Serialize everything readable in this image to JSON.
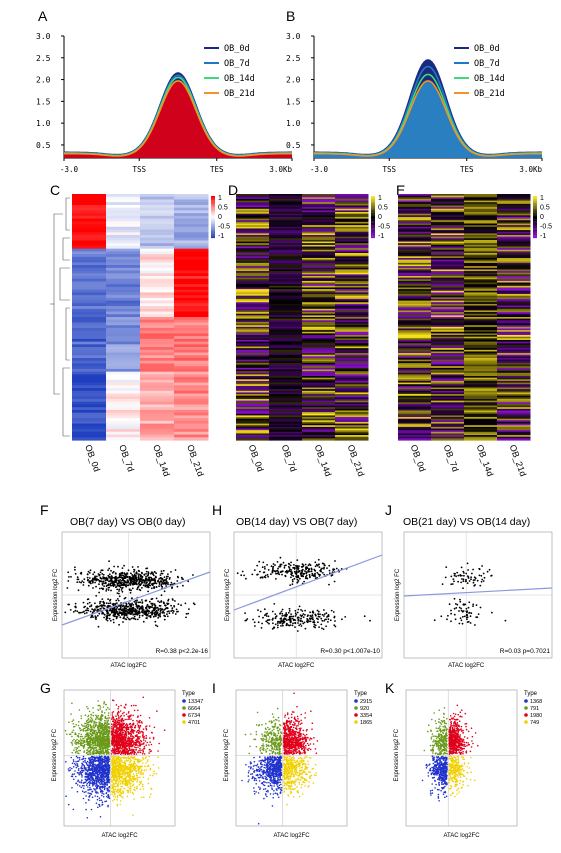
{
  "panels": {
    "A": "A",
    "B": "B",
    "C": "C",
    "D": "D",
    "E": "E",
    "F": "F",
    "G": "G",
    "H": "H",
    "I": "I",
    "J": "J",
    "K": "K"
  },
  "profile_x_ticks": [
    "-3.0",
    "TSS",
    "TES",
    "3.0Kb"
  ],
  "chart_data": [
    {
      "panel": "A",
      "type": "area",
      "x_ticks": [
        "-3.0",
        "TSS",
        "TES",
        "3.0Kb"
      ],
      "ylim": [
        0.2,
        3.0
      ],
      "y_ticks": [
        "0.5",
        "1.0",
        "1.5",
        "2.0",
        "2.5",
        "3.0"
      ],
      "legend_position": "top-right",
      "series": [
        {
          "name": "OB_0d",
          "color": "#1b2a7a",
          "peak": 2.15,
          "baseline": 0.33
        },
        {
          "name": "OB_7d",
          "color": "#1e78c8",
          "peak": 2.1,
          "baseline": 0.32
        },
        {
          "name": "OB_14d",
          "color": "#3fd97a",
          "peak": 2.05,
          "baseline": 0.31
        },
        {
          "name": "OB_21d",
          "color": "#f0932b",
          "peak": 1.97,
          "baseline": 0.3
        }
      ],
      "fill_color": "#d0021b"
    },
    {
      "panel": "B",
      "type": "area",
      "x_ticks": [
        "-3.0",
        "TSS",
        "TES",
        "3.0Kb"
      ],
      "ylim": [
        0.2,
        3.0
      ],
      "y_ticks": [
        "0.5",
        "1.0",
        "1.5",
        "2.0",
        "2.5",
        "3.0"
      ],
      "legend_position": "top-right",
      "series": [
        {
          "name": "OB_0d",
          "color": "#1b2a7a",
          "peak": 2.45,
          "baseline": 0.33
        },
        {
          "name": "OB_7d",
          "color": "#1e78c8",
          "peak": 2.3,
          "baseline": 0.32
        },
        {
          "name": "OB_14d",
          "color": "#3fd97a",
          "peak": 2.12,
          "baseline": 0.31
        },
        {
          "name": "OB_21d",
          "color": "#f0932b",
          "peak": 1.97,
          "baseline": 0.3
        }
      ],
      "fill_color": "#2a7fc0"
    },
    {
      "panel": "C",
      "type": "heatmap",
      "columns": [
        "OB_0d",
        "OB_7d",
        "OB_14d",
        "OB_21d"
      ],
      "legend_ticks": [
        "1",
        "0.5",
        "0",
        "-0.5",
        "-1"
      ],
      "colors": [
        "#ff0000",
        "#ffffff",
        "#1f3fbf"
      ]
    },
    {
      "panel": "D",
      "type": "heatmap",
      "columns": [
        "OB_0d",
        "OB_7d",
        "OB_14d",
        "OB_21d"
      ],
      "legend_ticks": [
        "1",
        "0.5",
        "0",
        "-0.5",
        "-1"
      ],
      "colors": [
        "#ffe81a",
        "#000000",
        "#8a0ed0"
      ]
    },
    {
      "panel": "E",
      "type": "heatmap",
      "columns": [
        "OB_0d",
        "OB_7d",
        "OB_14d",
        "OB_21d"
      ],
      "legend_ticks": [
        "1",
        "0.5",
        "0",
        "-0.5",
        "-1"
      ],
      "colors": [
        "#ffe81a",
        "#000000",
        "#8a0ed0"
      ]
    },
    {
      "panel": "F",
      "type": "scatter",
      "title": "OB(7 day) VS OB(0 day)",
      "xlabel": "ATAC log2FC",
      "ylabel": "Expression log2 FC",
      "stat": "R=0.38 p<2.2e-16",
      "regression_color": "#8a9ae0"
    },
    {
      "panel": "H",
      "type": "scatter",
      "title": "OB(14 day) VS OB(7 day)",
      "xlabel": "ATAC log2FC",
      "ylabel": "Expression log2 FC",
      "stat": "R=0.30 p<1.007e-10",
      "regression_color": "#8a9ae0"
    },
    {
      "panel": "J",
      "type": "scatter",
      "title": "OB(21 day) VS OB(14 day)",
      "xlabel": "ATAC log2FC",
      "ylabel": "Expression log2 FC",
      "stat": "R=0.03 p=0.7021",
      "regression_color": "#8a9ae0"
    },
    {
      "panel": "G",
      "type": "scatter",
      "xlabel": "ATAC log2FC",
      "ylabel": "Expression log2 FC",
      "legend_title": "Type",
      "legend": [
        {
          "value": "13347",
          "color": "#2233cc"
        },
        {
          "value": "6664",
          "color": "#6a9a1a"
        },
        {
          "value": "6734",
          "color": "#e0001a"
        },
        {
          "value": "4701",
          "color": "#f0d000"
        }
      ]
    },
    {
      "panel": "I",
      "type": "scatter",
      "xlabel": "ATAC log2FC",
      "ylabel": "Expression log2 FC",
      "legend_title": "Type",
      "legend": [
        {
          "value": "2915",
          "color": "#2233cc"
        },
        {
          "value": "920",
          "color": "#6a9a1a"
        },
        {
          "value": "3354",
          "color": "#e0001a"
        },
        {
          "value": "1865",
          "color": "#f0d000"
        }
      ]
    },
    {
      "panel": "K",
      "type": "scatter",
      "xlabel": "ATAC log2FC",
      "ylabel": "Expression log2 FC",
      "legend_title": "Type",
      "legend": [
        {
          "value": "1368",
          "color": "#2233cc"
        },
        {
          "value": "791",
          "color": "#6a9a1a"
        },
        {
          "value": "1980",
          "color": "#e0001a"
        },
        {
          "value": "749",
          "color": "#f0d000"
        }
      ]
    }
  ]
}
